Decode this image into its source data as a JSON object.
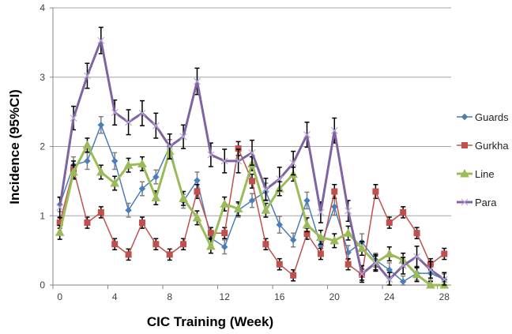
{
  "chart_data": {
    "type": "line",
    "title": "",
    "xlabel": "CIC Training (Week)",
    "ylabel": "Incidence (95%CI)",
    "ylim": [
      0,
      4
    ],
    "yticks": [
      0,
      1,
      2,
      3,
      4
    ],
    "x": [
      0,
      1,
      2,
      3,
      4,
      5,
      6,
      7,
      8,
      9,
      10,
      11,
      12,
      13,
      14,
      15,
      16,
      17,
      18,
      19,
      20,
      21,
      22,
      23,
      24,
      25,
      26,
      27,
      28
    ],
    "xtick_labels": [
      "0",
      "4",
      "8",
      "12",
      "16",
      "20",
      "24",
      "28"
    ],
    "xtick_label_weeks": [
      0,
      4,
      8,
      12,
      16,
      20,
      24,
      28
    ],
    "grid": "horizontal",
    "legend_position": "right",
    "series": [
      {
        "name": "Guards",
        "color": "#4A7EBB",
        "marker": "diamond",
        "values": [
          1.16,
          1.73,
          1.79,
          2.31,
          1.79,
          1.08,
          1.39,
          1.56,
          2.0,
          1.21,
          1.51,
          0.68,
          0.55,
          1.08,
          1.22,
          1.35,
          0.87,
          0.65,
          1.22,
          0.57,
          1.13,
          0.47,
          0.62,
          0.36,
          0.22,
          0.05,
          0.17,
          0.17,
          0.08
        ],
        "errors": [
          0.1,
          0.12,
          0.12,
          0.12,
          0.12,
          0.1,
          0.1,
          0.1,
          0.1,
          0.1,
          0.12,
          0.1,
          0.1,
          0.1,
          0.1,
          0.12,
          0.12,
          0.1,
          0.12,
          0.1,
          0.12,
          0.1,
          0.12,
          0.1,
          0.1,
          0.08,
          0.1,
          0.1,
          0.08
        ]
      },
      {
        "name": "Gurkha",
        "color": "#C0504D",
        "marker": "square",
        "values": [
          0.9,
          1.67,
          0.9,
          1.05,
          0.59,
          0.44,
          0.9,
          0.59,
          0.44,
          0.59,
          1.35,
          0.75,
          0.75,
          1.97,
          1.5,
          0.59,
          0.3,
          0.14,
          0.74,
          0.45,
          1.35,
          0.3,
          0.15,
          1.35,
          0.9,
          1.05,
          0.75,
          0.3,
          0.45
        ],
        "errors": [
          0.08,
          0.12,
          0.08,
          0.08,
          0.08,
          0.08,
          0.08,
          0.08,
          0.08,
          0.08,
          0.1,
          0.08,
          0.08,
          0.1,
          0.1,
          0.08,
          0.08,
          0.08,
          0.08,
          0.08,
          0.1,
          0.08,
          0.08,
          0.1,
          0.08,
          0.08,
          0.08,
          0.08,
          0.08
        ]
      },
      {
        "name": "Line",
        "color": "#9BBB59",
        "marker": "triangle",
        "values": [
          0.76,
          1.63,
          2.02,
          1.63,
          1.47,
          1.73,
          1.75,
          1.26,
          1.93,
          1.25,
          0.97,
          0.56,
          1.17,
          1.1,
          1.75,
          1.08,
          1.39,
          1.6,
          0.87,
          0.69,
          0.64,
          0.75,
          0.53,
          0.32,
          0.45,
          0.36,
          0.15,
          0.0,
          0.0
        ],
        "errors": [
          0.1,
          0.1,
          0.1,
          0.1,
          0.1,
          0.1,
          0.1,
          0.1,
          0.1,
          0.1,
          0.1,
          0.1,
          0.1,
          0.1,
          0.1,
          0.1,
          0.1,
          0.1,
          0.1,
          0.1,
          0.1,
          0.1,
          0.1,
          0.1,
          0.1,
          0.1,
          0.1,
          0.05,
          0.05
        ]
      },
      {
        "name": "Para",
        "color": "#8064A2",
        "marker": "x",
        "values": [
          1.12,
          2.41,
          3.02,
          3.53,
          2.49,
          2.35,
          2.48,
          2.3,
          2.0,
          2.14,
          2.94,
          1.88,
          1.79,
          1.79,
          1.91,
          1.38,
          1.53,
          1.76,
          2.17,
          1.05,
          2.23,
          1.07,
          0.16,
          0.32,
          0.08,
          0.28,
          0.41,
          0.22,
          0.08
        ],
        "errors": [
          0.15,
          0.17,
          0.18,
          0.19,
          0.18,
          0.18,
          0.18,
          0.18,
          0.18,
          0.17,
          0.19,
          0.17,
          0.17,
          0.17,
          0.18,
          0.16,
          0.17,
          0.17,
          0.18,
          0.15,
          0.18,
          0.15,
          0.12,
          0.12,
          0.1,
          0.12,
          0.15,
          0.12,
          0.1
        ]
      }
    ]
  }
}
